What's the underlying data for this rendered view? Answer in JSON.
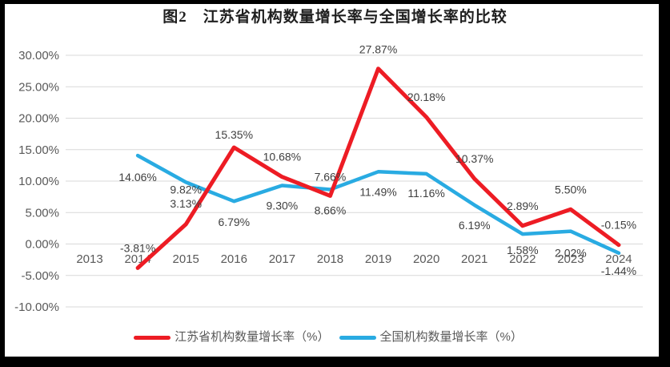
{
  "frame": {
    "border_color": "#000000",
    "background": "#ffffff"
  },
  "title": "图2　江苏省机构数量增长率与全国增长率的比较",
  "legend": [
    {
      "label": "江苏省机构数量增长率（%）",
      "color": "#ed1c24"
    },
    {
      "label": "全国机构数量增长率（%）",
      "color": "#29abe2"
    }
  ],
  "chart_data": {
    "type": "line",
    "title": "图2　江苏省机构数量增长率与全国增长率的比较",
    "categories": [
      "2013",
      "2014",
      "2015",
      "2016",
      "2017",
      "2018",
      "2019",
      "2020",
      "2021",
      "2022",
      "2023",
      "2024"
    ],
    "ylim": [
      -10,
      30
    ],
    "y_tick_step": 5,
    "y_tick_labels": [
      "30.00%",
      "25.00%",
      "20.00%",
      "15.00%",
      "10.00%",
      "5.00%",
      "0.00%",
      "-5.00%",
      "-10.00%"
    ],
    "grid": true,
    "grid_color": "#d9d9d9",
    "axis_text_color": "#595959",
    "data_label_color": "#404040",
    "legend_position": "bottom",
    "series": [
      {
        "name": "江苏省机构数量增长率（%）",
        "color": "#ed1c24",
        "stroke_width": 5,
        "values": [
          null,
          -3.81,
          3.13,
          15.35,
          10.68,
          7.66,
          27.87,
          20.18,
          10.37,
          2.89,
          5.5,
          -0.15
        ],
        "labels": [
          null,
          "-3.81%",
          "3.13%",
          "15.35%",
          "10.68%",
          "7.66%",
          "27.87%",
          "20.18%",
          "10.37%",
          "2.89%",
          "5.50%",
          "-0.15%"
        ],
        "label_dy": [
          null,
          -25,
          -26,
          -16,
          -25,
          -24,
          -24,
          -25,
          -25,
          -25,
          -25,
          -25
        ]
      },
      {
        "name": "全国机构数量增长率（%）",
        "color": "#29abe2",
        "stroke_width": 4.5,
        "values": [
          null,
          14.06,
          9.82,
          6.79,
          9.3,
          8.66,
          11.49,
          11.16,
          6.19,
          1.58,
          2.02,
          -1.44
        ],
        "labels": [
          null,
          "14.06%",
          "9.82%",
          "6.79%",
          "9.30%",
          "8.66%",
          "11.49%",
          "11.16%",
          "6.19%",
          "1.58%",
          "2.02%",
          "-1.44%"
        ],
        "label_dy": [
          null,
          27,
          9,
          26,
          25,
          26,
          25,
          24,
          25,
          20,
          27,
          22
        ]
      }
    ]
  }
}
